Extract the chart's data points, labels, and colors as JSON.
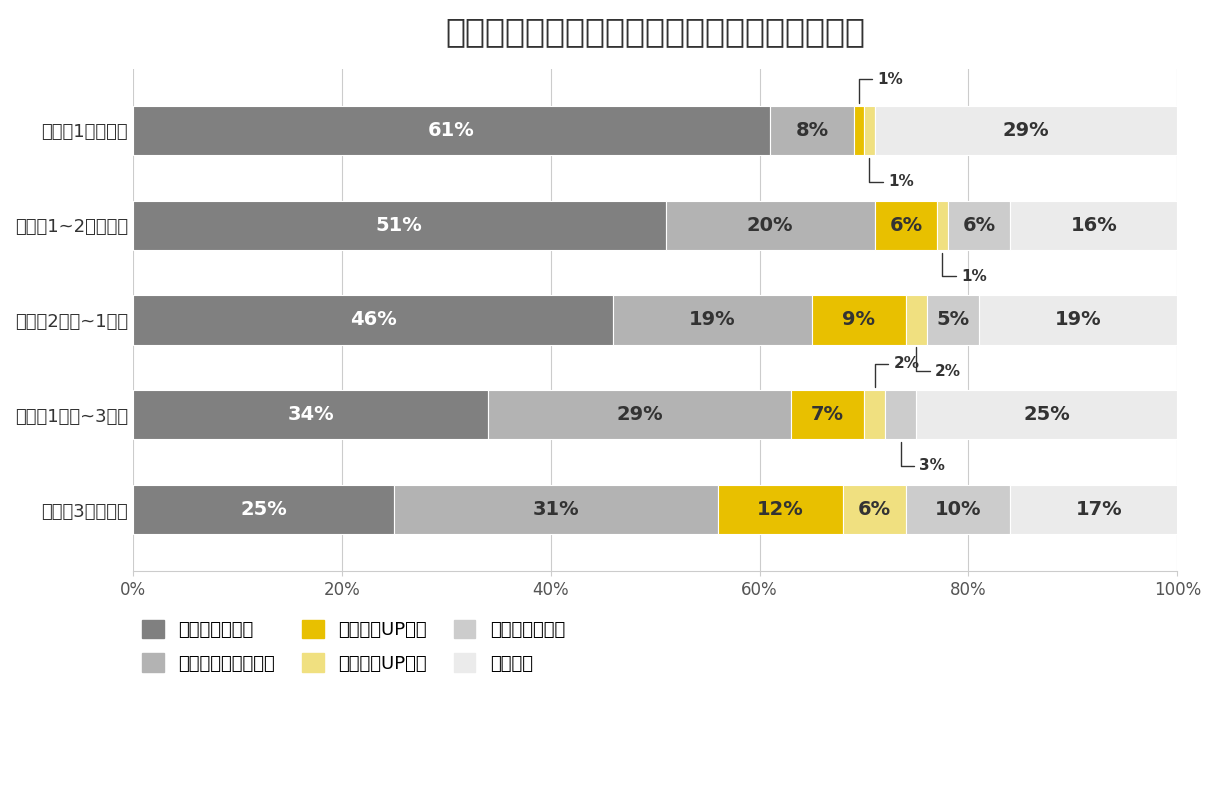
{
  "title": "オナ禁で脳機能関連の効果を感じた期間と割合",
  "categories": [
    "オナ禁1週間以下",
    "オナ禁1~2週間ほど",
    "オナ禁2週間~1ヶ月",
    "オナ禁1ヶ月~3ヶ月",
    "オナ禁3ヶ月以上"
  ],
  "segments": [
    {
      "label": "性機能向上関連",
      "color": "#808080",
      "values": [
        61,
        51,
        46,
        34,
        25
      ]
    },
    {
      "label": "日中の活力向上関連",
      "color": "#b3b3b3",
      "values": [
        8,
        20,
        19,
        29,
        31
      ]
    },
    {
      "label": "集中力がUPした",
      "color": "#e8c000",
      "values": [
        1,
        6,
        9,
        7,
        12
      ]
    },
    {
      "label": "記憶力がUPした",
      "color": "#f0e080",
      "values": [
        1,
        1,
        2,
        2,
        6
      ]
    },
    {
      "label": "モテ・美容関連",
      "color": "#cccccc",
      "values": [
        0,
        6,
        5,
        3,
        10
      ]
    },
    {
      "label": "効果なし",
      "color": "#ebebeb",
      "values": [
        29,
        16,
        19,
        25,
        17
      ]
    }
  ],
  "xlim": [
    0,
    100
  ],
  "xticks": [
    0,
    20,
    40,
    60,
    80,
    100
  ],
  "xticklabels": [
    "0%",
    "20%",
    "40%",
    "60%",
    "80%",
    "100%"
  ],
  "bar_height": 0.52,
  "background_color": "#ffffff",
  "title_fontsize": 24,
  "label_fontsize": 14,
  "legend_fontsize": 13,
  "tick_fontsize": 12,
  "ann_config": [
    {
      "row": 0,
      "seg": 2,
      "text": "1%",
      "side": "top"
    },
    {
      "row": 0,
      "seg": 3,
      "text": "1%",
      "side": "bottom"
    },
    {
      "row": 1,
      "seg": 3,
      "text": "1%",
      "side": "bottom"
    },
    {
      "row": 2,
      "seg": 3,
      "text": "2%",
      "side": "bottom"
    },
    {
      "row": 3,
      "seg": 3,
      "text": "2%",
      "side": "top"
    },
    {
      "row": 3,
      "seg": 4,
      "text": "3%",
      "side": "bottom"
    }
  ]
}
